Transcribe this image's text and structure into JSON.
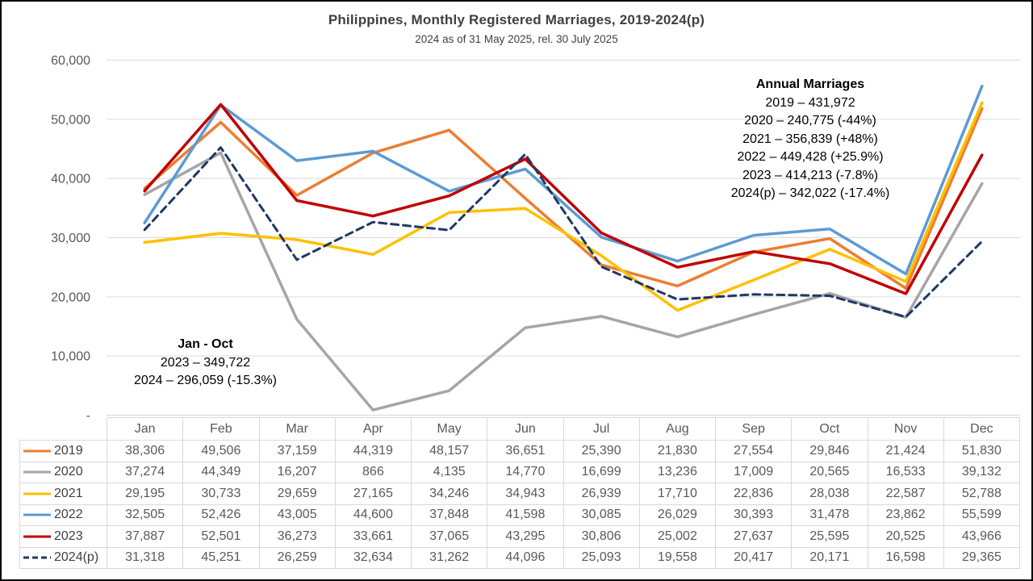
{
  "header": {
    "title": "Philippines, Monthly Registered Marriages, 2019-2024(p)",
    "subtitle": "2024 as of 31 May 2025, rel. 30 July 2025"
  },
  "annotations": {
    "annual": {
      "heading": "Annual Marriages",
      "lines": [
        "2019 – 431,972",
        "2020 – 240,775 (-44%)",
        "2021 – 356,839 (+48%)",
        "2022 – 449,428 (+25.9%)",
        "2023 – 414,213 (-7.8%)",
        "2024(p) – 342,022 (-17.4%)"
      ]
    },
    "jan_oct": {
      "heading": "Jan - Oct",
      "lines": [
        "2023 – 349,722",
        "2024 – 296,059 (-15.3%)"
      ]
    }
  },
  "chart_data": {
    "type": "line",
    "title": "Philippines, Monthly Registered Marriages, 2019-2024(p)",
    "categories": [
      "Jan",
      "Feb",
      "Mar",
      "Apr",
      "May",
      "Jun",
      "Jul",
      "Aug",
      "Sep",
      "Oct",
      "Nov",
      "Dec"
    ],
    "ylim": [
      0,
      60000
    ],
    "ytick_interval": 10000,
    "ytick_labels_top_to_bottom": [
      "60,000",
      "50,000",
      "40,000",
      "30,000",
      "20,000",
      "10,000",
      "-"
    ],
    "grid": true,
    "gridline_color": "#D9D9D9",
    "axis_label_color": "#595959",
    "legend_position": "table-left",
    "series": [
      {
        "name": "2019",
        "color": "#ED7D31",
        "dash": false,
        "values": [
          38306,
          49506,
          37159,
          44319,
          48157,
          36651,
          25390,
          21830,
          27554,
          29846,
          21424,
          51830
        ]
      },
      {
        "name": "2020",
        "color": "#A5A5A5",
        "dash": false,
        "values": [
          37274,
          44349,
          16207,
          866,
          4135,
          14770,
          16699,
          13236,
          17009,
          20565,
          16533,
          39132
        ]
      },
      {
        "name": "2021",
        "color": "#FFC000",
        "dash": false,
        "values": [
          29195,
          30733,
          29659,
          27165,
          34246,
          34943,
          26939,
          17710,
          22836,
          28038,
          22587,
          52788
        ]
      },
      {
        "name": "2022",
        "color": "#5B9BD5",
        "dash": false,
        "values": [
          32505,
          52426,
          43005,
          44600,
          37848,
          41598,
          30085,
          26029,
          30393,
          31478,
          23862,
          55599
        ]
      },
      {
        "name": "2023",
        "color": "#C00000",
        "dash": false,
        "values": [
          37887,
          52501,
          36273,
          33661,
          37065,
          43295,
          30806,
          25002,
          27637,
          25595,
          20525,
          43966
        ]
      },
      {
        "name": "2024(p)",
        "color": "#1F3864",
        "dash": true,
        "values": [
          31318,
          45251,
          26259,
          32634,
          31262,
          44096,
          25093,
          19558,
          20417,
          20171,
          16598,
          29365
        ]
      }
    ]
  }
}
